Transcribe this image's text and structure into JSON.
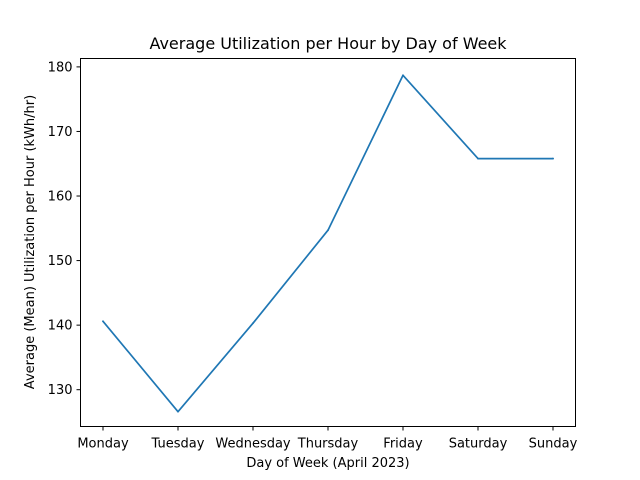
{
  "chart_data": {
    "type": "line",
    "title": "Average Utilization per Hour by Day of Week",
    "xlabel": "Day of Week (April 2023)",
    "ylabel": "Average (Mean) Utilization per Hour (kWh/hr)",
    "categories": [
      "Monday",
      "Tuesday",
      "Wednesday",
      "Thursday",
      "Friday",
      "Saturday",
      "Sunday"
    ],
    "series": [
      {
        "values": [
          140.6,
          126.6,
          140.3,
          154.7,
          178.7,
          165.8,
          165.8
        ],
        "color": "#1f77b4"
      }
    ],
    "yticks": [
      130,
      140,
      150,
      160,
      170,
      180
    ],
    "ylim": [
      124.3,
      181.3
    ],
    "grid": false,
    "legend": "none"
  }
}
